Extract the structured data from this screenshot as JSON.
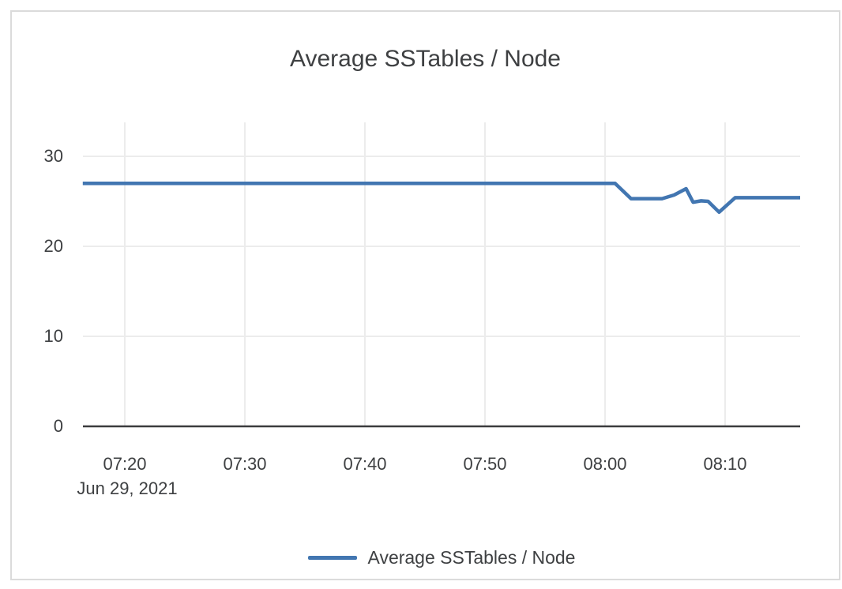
{
  "chart": {
    "title": "Average SSTables / Node",
    "date_label": "Jun 29, 2021"
  },
  "legend": {
    "items": [
      {
        "label": "Average SSTables / Node",
        "color": "#4276b1"
      }
    ]
  },
  "colors": {
    "series_line": "#4276b1",
    "gridline": "#ececec",
    "axis_line": "#3b3c3e",
    "text": "#3e4042",
    "card_border": "#dbdbdb",
    "background": "#ffffff"
  },
  "chart_data": {
    "type": "line",
    "title": "Average SSTables / Node",
    "xlabel": "",
    "ylabel": "",
    "grid": true,
    "legend_position": "bottom",
    "x_axis": {
      "date_label": "Jun 29, 2021",
      "tick_labels": [
        "07:20",
        "07:30",
        "07:40",
        "07:50",
        "08:00",
        "08:10"
      ],
      "range": [
        "07:16:30",
        "08:16:15"
      ]
    },
    "y_axis": {
      "tick_labels": [
        0,
        10,
        20,
        30
      ],
      "range": [
        0,
        33.8
      ]
    },
    "series": [
      {
        "name": "Average SSTables / Node",
        "color": "#4276b1",
        "points": [
          [
            "07:16:30",
            27.0
          ],
          [
            "08:00:50",
            27.0
          ],
          [
            "08:02:10",
            25.3
          ],
          [
            "08:04:45",
            25.3
          ],
          [
            "08:05:45",
            25.7
          ],
          [
            "08:06:45",
            26.4
          ],
          [
            "08:07:20",
            24.9
          ],
          [
            "08:08:00",
            25.05
          ],
          [
            "08:08:35",
            25.0
          ],
          [
            "08:09:30",
            23.8
          ],
          [
            "08:10:50",
            25.4
          ],
          [
            "08:16:15",
            25.4
          ]
        ]
      }
    ]
  }
}
